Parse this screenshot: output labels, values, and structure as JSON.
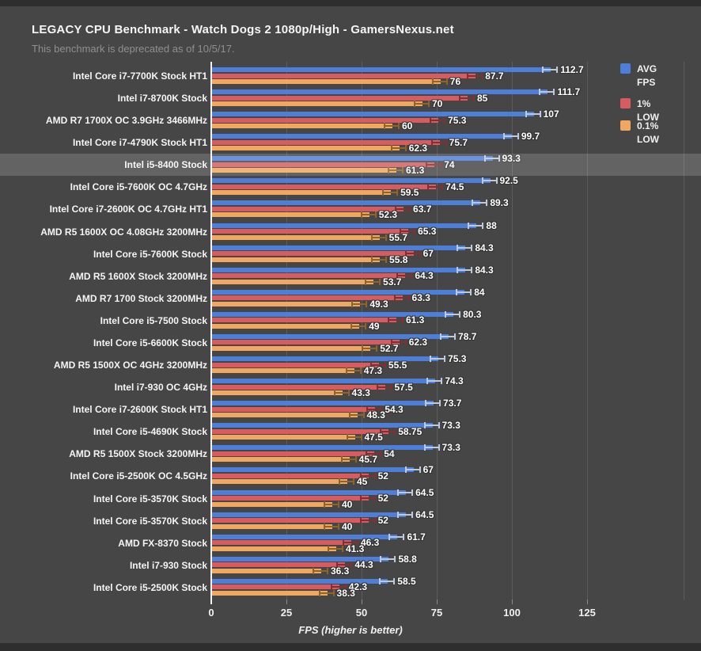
{
  "title": "LEGACY CPU Benchmark - Watch Dogs 2 1080p/High - GamersNexus.net",
  "subtitle": "This benchmark is deprecated as of 10/5/17.",
  "legend": [
    {
      "label": "AVG\nFPS",
      "color": "#4d7fd9"
    },
    {
      "label": "1% LOW",
      "color": "#d85c5f"
    },
    {
      "label": "0.1%\nLOW",
      "color": "#f0a75f"
    }
  ],
  "colors": {
    "background": "#464646",
    "edge_strip": "#2e2e2e",
    "gridline": "#5c5c5c",
    "zero_axis": "#f2f2f2",
    "highlight_band": "rgba(255,255,255,0.16)"
  },
  "chart_data": {
    "type": "bar",
    "orientation": "horizontal",
    "title": "LEGACY CPU Benchmark - Watch Dogs 2 1080p/High - GamersNexus.net",
    "subtitle": "This benchmark is deprecated as of 10/5/17.",
    "xlabel": "FPS (higher is better)",
    "xlim": [
      0,
      132
    ],
    "xticks": [
      0,
      25,
      50,
      75,
      100,
      125
    ],
    "grid": true,
    "legend_position": "right",
    "highlighted_index": 4,
    "highlighted_category": "Intel i5-8400 Stock",
    "categories": [
      "Intel Core i7-7700K Stock HT1",
      "Intel i7-8700K Stock",
      "AMD R7 1700X OC 3.9GHz 3466MHz",
      "Intel Core i7-4790K Stock HT1",
      "Intel i5-8400 Stock",
      "Intel Core i5-7600K OC 4.7GHz",
      "Intel Core i7-2600K OC 4.7GHz HT1",
      "AMD R5 1600X OC 4.08GHz 3200MHz",
      "Intel Core i5-7600K Stock",
      "AMD R5 1600X Stock 3200MHz",
      "AMD R7 1700 Stock 3200MHz",
      "Intel Core i5-7500 Stock",
      "Intel Core i5-6600K Stock",
      "AMD R5 1500X OC 4GHz 3200MHz",
      "Intel i7-930 OC 4GHz",
      "Intel Core i7-2600K Stock HT1",
      "Intel Core i5-4690K Stock",
      "AMD R5 1500X Stock 3200MHz",
      "Intel Core i5-2500K OC 4.5GHz",
      "Intel Core i5-3570K Stock",
      "Intel Core i5-3570K Stock",
      "AMD FX-8370 Stock",
      "Intel i7-930 Stock",
      "Intel Core i5-2500K Stock"
    ],
    "series": [
      {
        "key": "avg-fps",
        "name": "AVG FPS",
        "color": "#4d7fd9",
        "whisker_color": "#bcc9de",
        "values": [
          112.7,
          111.7,
          107,
          99.7,
          93.3,
          92.5,
          89.3,
          88,
          84.3,
          84.3,
          84,
          80.3,
          78.7,
          75.3,
          74.3,
          73.7,
          73.3,
          73.3,
          67,
          64.5,
          64.5,
          61.7,
          58.8,
          58.5
        ]
      },
      {
        "key": "1pct-low",
        "name": "1% LOW",
        "color": "#d85c5f",
        "whisker_color": "#812f32",
        "values": [
          87.7,
          85,
          75.3,
          75.7,
          74,
          74.5,
          63.7,
          65.3,
          67,
          64.3,
          63.3,
          61.3,
          62.3,
          55.5,
          57.5,
          54.3,
          58.75,
          54,
          52,
          52,
          52,
          46.3,
          44.3,
          42.3
        ]
      },
      {
        "key": "01pct-low",
        "name": "0.1% LOW",
        "color": "#f0a75f",
        "whisker_color": "#8f6527",
        "values": [
          76,
          70,
          60,
          62.3,
          61.3,
          59.5,
          52.3,
          55.7,
          55.8,
          53.7,
          49.3,
          49,
          52.7,
          47.3,
          43.3,
          48.3,
          47.5,
          45.7,
          45,
          40,
          40,
          41.3,
          36.3,
          38.3
        ]
      }
    ]
  }
}
